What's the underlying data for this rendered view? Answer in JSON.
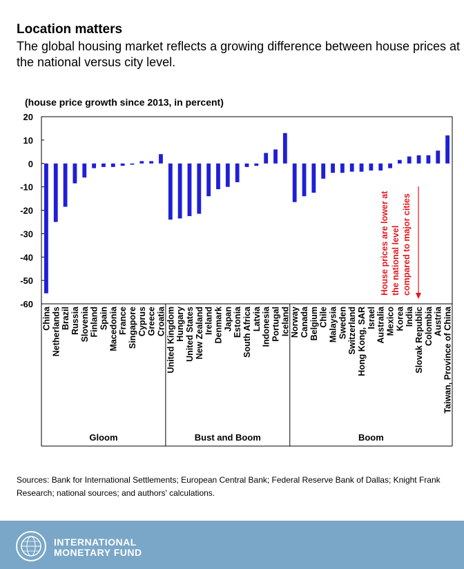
{
  "header": {
    "title": "Location matters",
    "subtitle": "The global housing market reflects a growing difference between house prices at the national versus city level."
  },
  "chart_data": {
    "type": "bar",
    "title": "Location matters",
    "ylabel": "(house price growth since 2013, in percent)",
    "ylim": [
      -60,
      20
    ],
    "yticks": [
      20,
      10,
      0,
      -10,
      -20,
      -30,
      -40,
      -50,
      -60
    ],
    "bar_color": "#1f1fd6",
    "categories": [
      "China",
      "Netherlands",
      "Brazil",
      "Russia",
      "Slovenia",
      "Finland",
      "Spain",
      "Macedonia",
      "France",
      "Singapore",
      "Cyprus",
      "Greece",
      "Croatia",
      "United Kingdom",
      "Hungary",
      "United States",
      "New Zealand",
      "Ireland",
      "Denmark",
      "Japan",
      "Estonia",
      "South Africa",
      "Latvia",
      "Indonesia",
      "Portugal",
      "Iceland",
      "Norway",
      "Canada",
      "Belgium",
      "Chile",
      "Malaysia",
      "Sweden",
      "Switzerland",
      "Hong Kong, SAR",
      "Israel",
      "Australia",
      "Mexico",
      "Korea",
      "India",
      "Slovak Republic",
      "Colombia",
      "Austria",
      "Taiwan, Province of China"
    ],
    "values": [
      -55.5,
      -25,
      -18.5,
      -8.5,
      -6,
      -2,
      -1.5,
      -1.5,
      -1,
      -0.5,
      1,
      1,
      4,
      -24,
      -23.5,
      -22.5,
      -21.5,
      -14,
      -11,
      -10,
      -8,
      -1.5,
      -1,
      4.5,
      6,
      13,
      -16.5,
      -14,
      -12.5,
      -6.5,
      -4,
      -4,
      -3.5,
      -3.5,
      -3,
      -3,
      -2,
      1.5,
      3,
      3.5,
      3.5,
      5.5,
      12
    ],
    "groups": [
      {
        "name": "Gloom",
        "count": 13
      },
      {
        "name": "Bust and Boom",
        "count": 13
      },
      {
        "name": "Boom",
        "count": 17
      }
    ],
    "annotation": {
      "lines": [
        "House prices are lower at",
        "the national level",
        "compared to major cities"
      ],
      "color": "#e0191f"
    },
    "grid": false
  },
  "sources": "Sources: Bank for International Settlements; European Central Bank; Federal Reserve Bank of Dallas; Knight Frank Research; national sources; and authors' calculations.",
  "footer": {
    "background": "#7aa7c7",
    "org_line1": "INTERNATIONAL",
    "org_line2": "MONETARY FUND"
  }
}
